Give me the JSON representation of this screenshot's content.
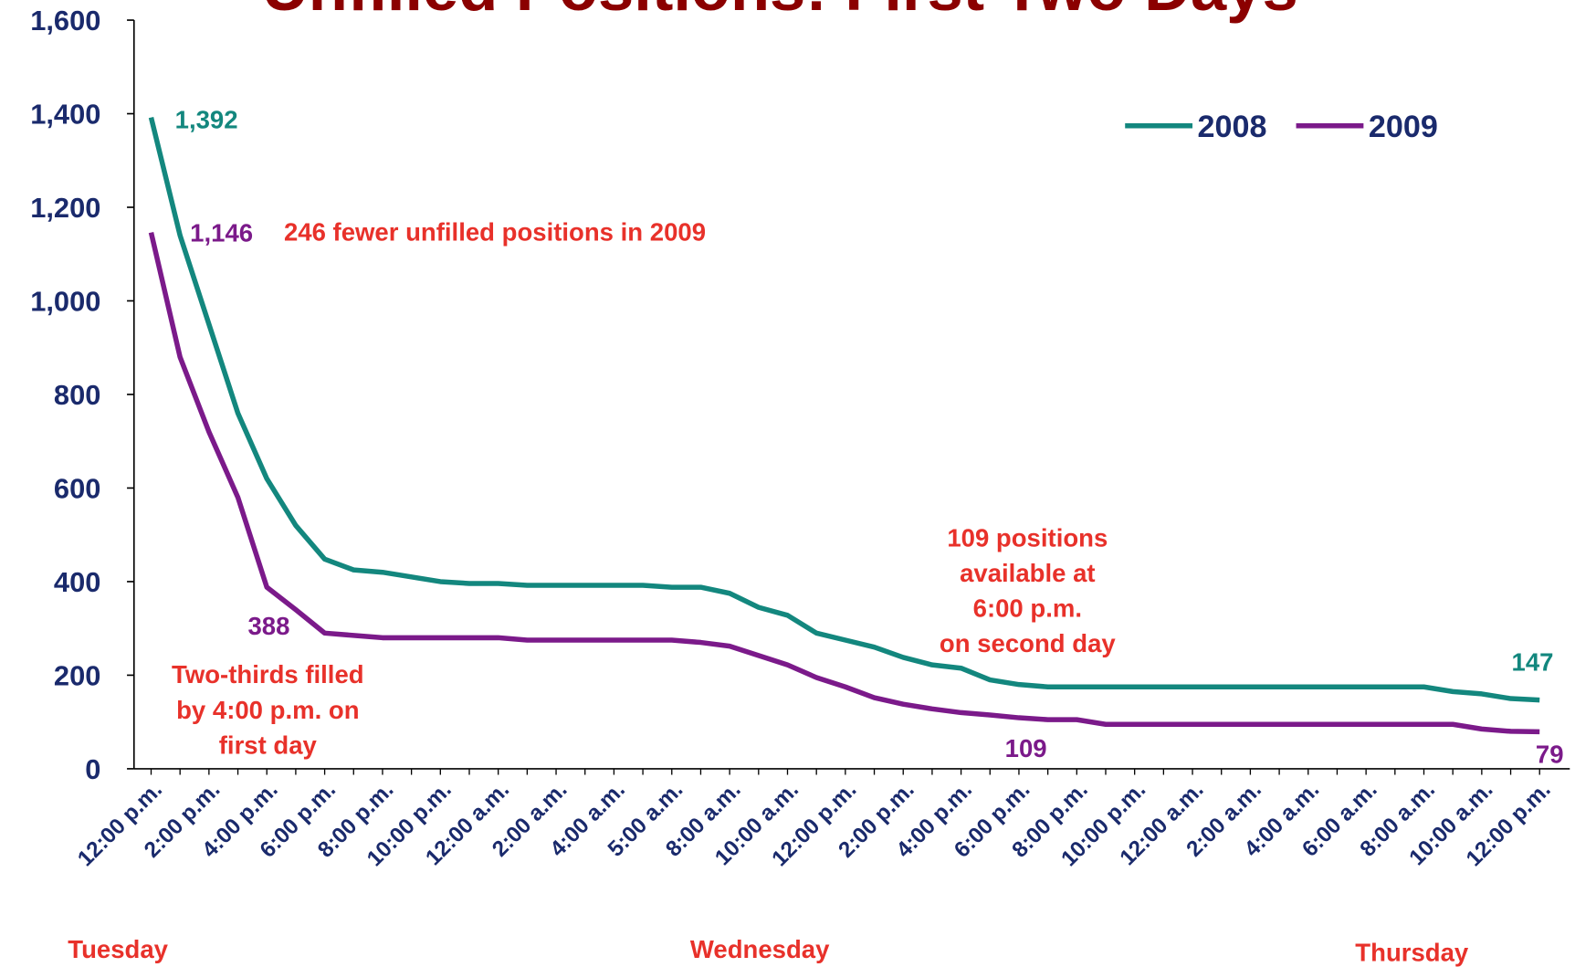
{
  "chart_data": {
    "type": "line",
    "title": "Unfilled Positions: First Two Days",
    "categories": [
      "12:00 p.m.",
      null,
      "2:00 p.m.",
      null,
      "4:00 p.m.",
      null,
      "6:00 p.m.",
      null,
      "8:00 p.m.",
      null,
      "10:00 p.m.",
      null,
      "12:00 a.m.",
      null,
      "2:00 a.m.",
      null,
      "4:00 a.m.",
      null,
      "5:00 a.m.",
      null,
      "8:00 a.m.",
      null,
      "10:00 a.m.",
      null,
      "12:00 p.m.",
      null,
      "2:00 p.m.",
      null,
      "4:00 p.m.",
      null,
      "6:00 p.m.",
      null,
      "8:00 p.m.",
      null,
      "10:00 p.m.",
      null,
      "12:00 a.m.",
      null,
      "2:00 a.m.",
      null,
      "4:00 a.m.",
      null,
      "6:00 a.m.",
      null,
      "8:00 a.m.",
      null,
      "10:00 a.m.",
      null,
      "12:00 p.m."
    ],
    "series": [
      {
        "name": "2008",
        "color": "#13877e",
        "values": [
          1392,
          1140,
          950,
          760,
          620,
          520,
          448,
          425,
          420,
          410,
          400,
          396,
          396,
          392,
          392,
          392,
          392,
          392,
          388,
          388,
          375,
          345,
          328,
          290,
          275,
          260,
          238,
          222,
          215,
          190,
          180,
          175,
          175,
          175,
          175,
          175,
          175,
          175,
          175,
          175,
          175,
          175,
          175,
          175,
          175,
          165,
          160,
          150,
          147
        ],
        "value_labels": [
          "1,392",
          null,
          null,
          null,
          null,
          null,
          null,
          null,
          null,
          null,
          null,
          null,
          null,
          null,
          null,
          null,
          null,
          null,
          null,
          null,
          null,
          null,
          null,
          null,
          null,
          null,
          null,
          null,
          null,
          null,
          null,
          null,
          null,
          null,
          null,
          null,
          null,
          null,
          null,
          null,
          null,
          null,
          null,
          null,
          null,
          null,
          null,
          null,
          "147"
        ]
      },
      {
        "name": "2009",
        "color": "#7b1a8a",
        "values": [
          1146,
          880,
          720,
          580,
          388,
          340,
          290,
          285,
          280,
          280,
          280,
          280,
          280,
          275,
          275,
          275,
          275,
          275,
          275,
          270,
          262,
          242,
          222,
          195,
          175,
          152,
          138,
          128,
          120,
          115,
          109,
          105,
          105,
          95,
          95,
          95,
          95,
          95,
          95,
          95,
          95,
          95,
          95,
          95,
          95,
          95,
          85,
          80,
          79
        ],
        "value_labels": [
          "1,146",
          null,
          null,
          null,
          "388",
          null,
          null,
          null,
          null,
          null,
          null,
          null,
          null,
          null,
          null,
          null,
          null,
          null,
          null,
          null,
          null,
          null,
          null,
          null,
          null,
          null,
          null,
          null,
          null,
          null,
          "109",
          null,
          null,
          null,
          null,
          null,
          null,
          null,
          null,
          null,
          null,
          null,
          null,
          null,
          null,
          null,
          null,
          null,
          "79"
        ]
      }
    ],
    "ylim": [
      0,
      1600
    ],
    "yticks": [
      0,
      200,
      400,
      600,
      800,
      {
        "value": 1000,
        "label": "1,000"
      },
      {
        "value": 1200,
        "label": "1,200"
      },
      {
        "value": 1400,
        "label": "1,400"
      },
      {
        "value": 1600,
        "label": "1,600"
      }
    ],
    "legend": "upper right",
    "annotations": [
      {
        "lines": [
          "246 fewer unfilled positions in 2009"
        ]
      },
      {
        "lines": [
          "Two-thirds filled",
          "by 4:00 p.m. on",
          "first day"
        ]
      },
      {
        "lines": [
          "109 positions",
          "available at",
          "6:00 p.m.",
          "on second day"
        ]
      }
    ],
    "day_labels": [
      "Tuesday",
      "Wednesday",
      "Thursday"
    ]
  }
}
